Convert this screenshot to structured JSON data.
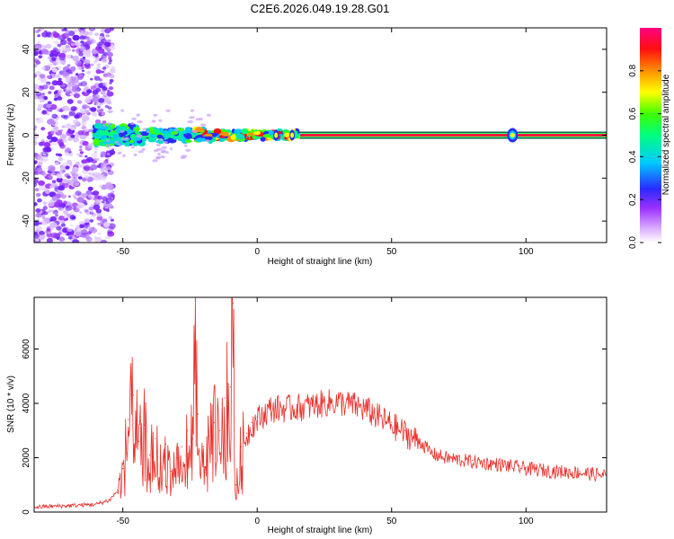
{
  "figure": {
    "title": "C2E6.2026.049.19.28.G01"
  },
  "chart_data": [
    {
      "type": "heatmap",
      "title": "",
      "xlabel": "Height of straight line (km)",
      "ylabel": "Frequency (Hz)",
      "xlim": [
        -83,
        130
      ],
      "ylim": [
        -50,
        50
      ],
      "xticks": [
        -50,
        0,
        50,
        100
      ],
      "yticks": [
        -40,
        -20,
        0,
        20,
        40
      ],
      "colorbar": {
        "label": "Normalized spectral amplitude",
        "ticks": [
          0.0,
          0.2,
          0.4,
          0.6,
          0.8
        ],
        "range": [
          0,
          1
        ],
        "colors": [
          "#ffffff",
          "#9b30ff",
          "#2020ff",
          "#00c8ff",
          "#00ff80",
          "#40ff00",
          "#ffff00",
          "#ff8000",
          "#ff0000",
          "#ff0080"
        ]
      },
      "features": {
        "noise_region_x": [
          -83,
          -55
        ],
        "signal_band_freq_hz": 0,
        "signal_band_start_km": -60,
        "bright_blob_km": 95
      }
    },
    {
      "type": "line",
      "title": "",
      "xlabel": "Height of straight line (km)",
      "ylabel": "SNR (10 * v/v)",
      "xlim": [
        -83,
        130
      ],
      "ylim": [
        0,
        7900
      ],
      "xticks": [
        -50,
        0,
        50,
        100
      ],
      "yticks": [
        0,
        2000,
        4000,
        6000
      ],
      "series": [
        {
          "name": "SNR",
          "color": "#e8302a",
          "x": [
            -83,
            -70,
            -60,
            -55,
            -52,
            -50,
            -48,
            -46,
            -44,
            -42,
            -40,
            -38,
            -36,
            -34,
            -32,
            -30,
            -28,
            -26,
            -24,
            -23,
            -22,
            -20,
            -18,
            -16,
            -14,
            -12,
            -10,
            -9,
            -8,
            -6,
            -4,
            -2,
            0,
            5,
            10,
            15,
            20,
            25,
            30,
            35,
            40,
            45,
            50,
            55,
            60,
            65,
            70,
            80,
            90,
            100,
            110,
            120,
            130
          ],
          "values": [
            200,
            250,
            300,
            450,
            800,
            1600,
            3400,
            4300,
            2600,
            3200,
            2100,
            2700,
            1800,
            2500,
            1500,
            2000,
            2400,
            3000,
            2700,
            7800,
            3600,
            2400,
            2800,
            3300,
            3000,
            4200,
            4600,
            7700,
            1000,
            2400,
            2900,
            3300,
            3500,
            3900,
            3900,
            3950,
            4000,
            4100,
            4150,
            4050,
            3900,
            3600,
            3300,
            3000,
            2700,
            2200,
            2050,
            1900,
            1800,
            1650,
            1550,
            1500,
            1400
          ]
        }
      ]
    }
  ]
}
